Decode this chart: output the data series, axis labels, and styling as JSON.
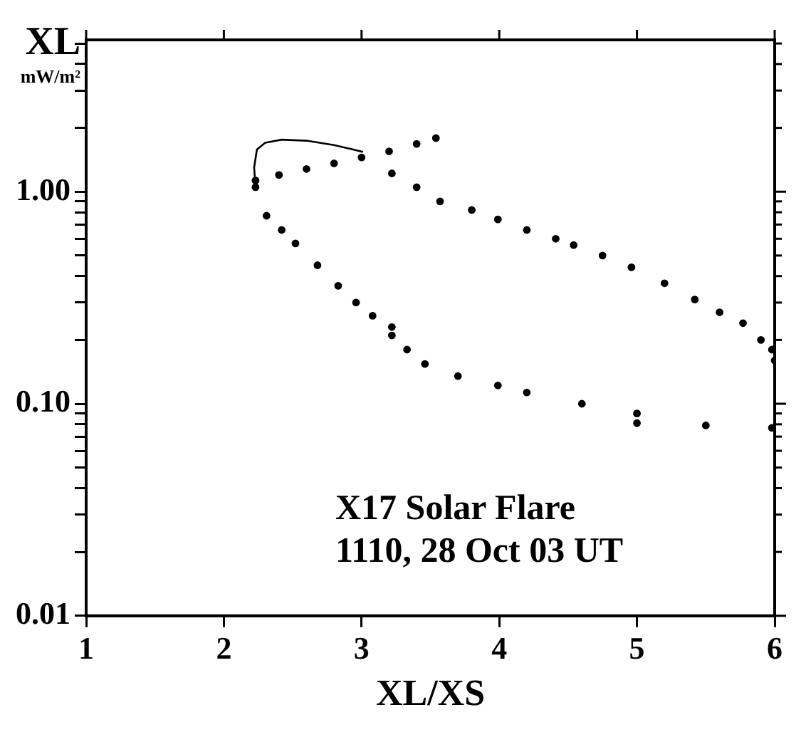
{
  "chart_data": {
    "type": "scatter",
    "xlabel": "XL/XS",
    "ylabel": "XL mW/m²",
    "annotations": [
      "X17 Solar Flare",
      "1110, 28 Oct 03 UT"
    ],
    "x": [
      2.23,
      2.4,
      2.6,
      2.8,
      3.0,
      3.2,
      3.4,
      3.54,
      3.22,
      3.4,
      3.57,
      3.8,
      3.99,
      4.2,
      4.41,
      4.54,
      4.75,
      4.96,
      5.2,
      5.42,
      5.6,
      5.77,
      5.9,
      5.98,
      6.0,
      2.23,
      2.31,
      2.42,
      2.52,
      2.68,
      2.83,
      2.96,
      3.08,
      3.22,
      3.22,
      3.33,
      3.46,
      3.7,
      3.99,
      4.2,
      4.6,
      5.0,
      5.0,
      5.5,
      5.98
    ],
    "series": [
      {
        "color": "#000000",
        "values": [
          1.13,
          1.2,
          1.28,
          1.36,
          1.45,
          1.55,
          1.68,
          1.79,
          1.22,
          1.05,
          0.9,
          0.82,
          0.74,
          0.66,
          0.6,
          0.56,
          0.5,
          0.44,
          0.37,
          0.31,
          0.27,
          0.24,
          0.2,
          0.18,
          0.16,
          1.05,
          0.77,
          0.66,
          0.57,
          0.45,
          0.36,
          0.3,
          0.26,
          0.23,
          0.21,
          0.18,
          0.154,
          0.135,
          0.122,
          0.113,
          0.1,
          0.09,
          0.081,
          0.079,
          0.077
        ]
      },
      {
        "type": "line",
        "marker": "none",
        "color": "#000000",
        "x": [
          2.23,
          2.22,
          2.24,
          2.3,
          2.42,
          2.6,
          2.8,
          2.94,
          3.01
        ],
        "values": [
          1.05,
          1.3,
          1.58,
          1.7,
          1.76,
          1.74,
          1.66,
          1.58,
          1.54
        ]
      }
    ],
    "xlim": [
      1,
      6
    ],
    "xticks": [
      1,
      2,
      3,
      4,
      5,
      6
    ],
    "log": true,
    "ylim": [
      0.01,
      5.2
    ],
    "yticks": [
      {
        "value": 0.01,
        "label": "0.01"
      },
      {
        "value": 0.02,
        "label": null
      },
      {
        "value": 0.03,
        "label": null
      },
      {
        "value": 0.04,
        "label": null
      },
      {
        "value": 0.05,
        "label": null
      },
      {
        "value": 0.06,
        "label": null
      },
      {
        "value": 0.07,
        "label": null
      },
      {
        "value": 0.08,
        "label": null
      },
      {
        "value": 0.09,
        "label": null
      },
      {
        "value": 0.1,
        "label": "0.10"
      },
      {
        "value": 0.2,
        "label": null
      },
      {
        "value": 0.3,
        "label": null
      },
      {
        "value": 0.4,
        "label": null
      },
      {
        "value": 0.5,
        "label": null
      },
      {
        "value": 0.6,
        "label": null
      },
      {
        "value": 0.7,
        "label": null
      },
      {
        "value": 0.8,
        "label": null
      },
      {
        "value": 0.9,
        "label": null
      },
      {
        "value": 1,
        "label": "1.00"
      },
      {
        "value": 2,
        "label": null
      },
      {
        "value": 3,
        "label": null
      },
      {
        "value": 4,
        "label": null
      },
      {
        "value": 5,
        "label": null
      }
    ],
    "marker": "circle",
    "grid": false,
    "legend": false
  }
}
